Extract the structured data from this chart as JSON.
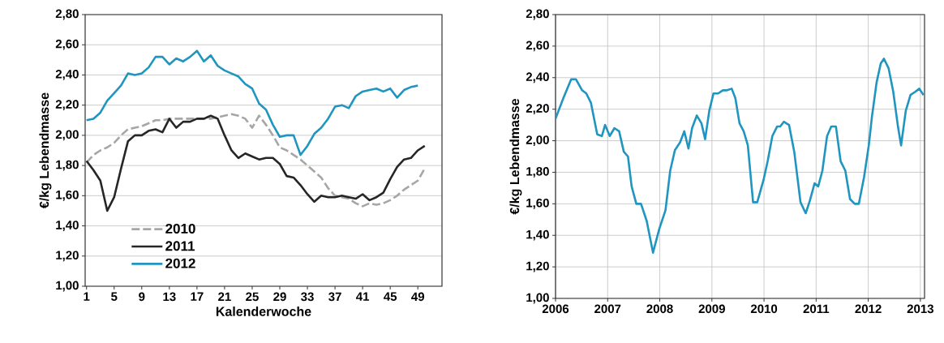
{
  "chart_data": [
    {
      "type": "line",
      "xlabel": "Kalenderwoche",
      "ylabel": "€/kg Lebendmasse",
      "xlim": [
        0.8,
        52.5
      ],
      "xticks": [
        1,
        5,
        9,
        13,
        17,
        21,
        25,
        29,
        33,
        37,
        41,
        45,
        49
      ],
      "ylim": [
        1.0,
        2.8
      ],
      "yticks": [
        {
          "value": 1.0,
          "label": "1,00"
        },
        {
          "value": 1.2,
          "label": "1,20"
        },
        {
          "value": 1.4,
          "label": "1,40"
        },
        {
          "value": 1.6,
          "label": "1,60"
        },
        {
          "value": 1.8,
          "label": "1,80"
        },
        {
          "value": 2.0,
          "label": "2,00"
        },
        {
          "value": 2.2,
          "label": "2,20"
        },
        {
          "value": 2.4,
          "label": "2,40"
        },
        {
          "value": 2.6,
          "label": "2,60"
        },
        {
          "value": 2.8,
          "label": "2,80"
        }
      ],
      "grid": "y",
      "legend": "bottom left",
      "marker": "none",
      "series": [
        {
          "name": "2010",
          "color": "#a6a6a6",
          "line_style": "dashed",
          "x": [
            1,
            2,
            3,
            4,
            5,
            6,
            7,
            8,
            9,
            10,
            11,
            12,
            13,
            14,
            15,
            16,
            17,
            18,
            19,
            20,
            21,
            22,
            23,
            24,
            25,
            26,
            27,
            28,
            29,
            30,
            31,
            32,
            33,
            34,
            35,
            36,
            37,
            38,
            39,
            40,
            41,
            42,
            43,
            44,
            45,
            46,
            47,
            48,
            49,
            50
          ],
          "values": [
            1.82,
            1.87,
            1.9,
            1.92,
            1.95,
            2.0,
            2.04,
            2.05,
            2.06,
            2.08,
            2.1,
            2.1,
            2.11,
            2.11,
            2.11,
            2.11,
            2.11,
            2.11,
            2.11,
            2.12,
            2.13,
            2.14,
            2.13,
            2.11,
            2.05,
            2.13,
            2.07,
            2.0,
            1.92,
            1.9,
            1.87,
            1.84,
            1.8,
            1.76,
            1.72,
            1.65,
            1.6,
            1.59,
            1.58,
            1.55,
            1.53,
            1.55,
            1.54,
            1.55,
            1.57,
            1.6,
            1.64,
            1.67,
            1.7,
            1.78
          ]
        },
        {
          "name": "2011",
          "color": "#262626",
          "line_style": "solid",
          "x": [
            1,
            2,
            3,
            4,
            5,
            6,
            7,
            8,
            9,
            10,
            11,
            12,
            13,
            14,
            15,
            16,
            17,
            18,
            19,
            20,
            21,
            22,
            23,
            24,
            25,
            26,
            27,
            28,
            29,
            30,
            31,
            32,
            33,
            34,
            35,
            36,
            37,
            38,
            39,
            40,
            41,
            42,
            43,
            44,
            45,
            46,
            47,
            48,
            49,
            50
          ],
          "values": [
            1.83,
            1.77,
            1.7,
            1.5,
            1.59,
            1.78,
            1.96,
            2.0,
            2.0,
            2.03,
            2.04,
            2.02,
            2.11,
            2.05,
            2.09,
            2.09,
            2.11,
            2.11,
            2.13,
            2.11,
            2.0,
            1.9,
            1.85,
            1.88,
            1.86,
            1.84,
            1.85,
            1.85,
            1.81,
            1.73,
            1.72,
            1.67,
            1.61,
            1.56,
            1.6,
            1.59,
            1.59,
            1.6,
            1.59,
            1.58,
            1.61,
            1.57,
            1.59,
            1.62,
            1.71,
            1.79,
            1.84,
            1.85,
            1.9,
            1.93
          ]
        },
        {
          "name": "2012",
          "color": "#1f95c0",
          "line_style": "solid",
          "x": [
            1,
            2,
            3,
            4,
            5,
            6,
            7,
            8,
            9,
            10,
            11,
            12,
            13,
            14,
            15,
            16,
            17,
            18,
            19,
            20,
            21,
            22,
            23,
            24,
            25,
            26,
            27,
            28,
            29,
            30,
            31,
            32,
            33,
            34,
            35,
            36,
            37,
            38,
            39,
            40,
            41,
            42,
            43,
            44,
            45,
            46,
            47,
            48,
            49
          ],
          "values": [
            2.1,
            2.11,
            2.15,
            2.23,
            2.28,
            2.33,
            2.41,
            2.4,
            2.41,
            2.45,
            2.52,
            2.52,
            2.47,
            2.51,
            2.49,
            2.52,
            2.56,
            2.49,
            2.53,
            2.46,
            2.43,
            2.41,
            2.39,
            2.34,
            2.31,
            2.21,
            2.17,
            2.07,
            1.99,
            2.0,
            2.0,
            1.87,
            1.93,
            2.01,
            2.05,
            2.11,
            2.19,
            2.2,
            2.18,
            2.26,
            2.29,
            2.3,
            2.31,
            2.29,
            2.31,
            2.25,
            2.3,
            2.32,
            2.33
          ]
        }
      ]
    },
    {
      "type": "line",
      "ylabel": "€/kg Lebendmasse",
      "xlim": [
        2006,
        2013.08
      ],
      "xticks": [
        2006,
        2007,
        2008,
        2009,
        2010,
        2011,
        2012,
        2013
      ],
      "ylim": [
        1.0,
        2.8
      ],
      "yticks": [
        {
          "value": 1.0,
          "label": "1,00"
        },
        {
          "value": 1.2,
          "label": "1,20"
        },
        {
          "value": 1.4,
          "label": "1,40"
        },
        {
          "value": 1.6,
          "label": "1,60"
        },
        {
          "value": 1.8,
          "label": "1,80"
        },
        {
          "value": 2.0,
          "label": "2,00"
        },
        {
          "value": 2.2,
          "label": "2,20"
        },
        {
          "value": 2.4,
          "label": "2,40"
        },
        {
          "value": 2.6,
          "label": "2,60"
        },
        {
          "value": 2.8,
          "label": "2,80"
        }
      ],
      "grid": true,
      "legend": false,
      "marker": "none",
      "series": [
        {
          "color": "#1f95c0",
          "line_style": "solid",
          "x": [
            2006.0,
            2006.15,
            2006.3,
            2006.39,
            2006.51,
            2006.59,
            2006.68,
            2006.8,
            2006.89,
            2006.95,
            2007.04,
            2007.13,
            2007.22,
            2007.31,
            2007.39,
            2007.46,
            2007.55,
            2007.64,
            2007.75,
            2007.87,
            2007.99,
            2008.11,
            2008.2,
            2008.29,
            2008.39,
            2008.47,
            2008.55,
            2008.62,
            2008.71,
            2008.8,
            2008.87,
            2008.95,
            2009.03,
            2009.12,
            2009.21,
            2009.29,
            2009.38,
            2009.45,
            2009.53,
            2009.61,
            2009.69,
            2009.79,
            2009.87,
            2009.99,
            2010.07,
            2010.16,
            2010.25,
            2010.31,
            2010.38,
            2010.48,
            2010.58,
            2010.7,
            2010.8,
            2010.88,
            2010.97,
            2011.04,
            2011.12,
            2011.21,
            2011.29,
            2011.38,
            2011.47,
            2011.56,
            2011.65,
            2011.74,
            2011.82,
            2011.92,
            2012.01,
            2012.07,
            2012.16,
            2012.24,
            2012.3,
            2012.39,
            2012.48,
            2012.57,
            2012.63,
            2012.72,
            2012.81,
            2012.9,
            2012.98,
            2013.06
          ],
          "values": [
            2.14,
            2.27,
            2.39,
            2.39,
            2.32,
            2.3,
            2.24,
            2.04,
            2.03,
            2.1,
            2.03,
            2.08,
            2.06,
            1.93,
            1.9,
            1.71,
            1.6,
            1.6,
            1.49,
            1.29,
            1.44,
            1.56,
            1.81,
            1.94,
            1.99,
            2.06,
            1.95,
            2.08,
            2.16,
            2.11,
            2.01,
            2.19,
            2.3,
            2.3,
            2.32,
            2.32,
            2.33,
            2.27,
            2.11,
            2.06,
            1.97,
            1.61,
            1.61,
            1.75,
            1.87,
            2.03,
            2.09,
            2.09,
            2.12,
            2.1,
            1.93,
            1.61,
            1.54,
            1.62,
            1.73,
            1.71,
            1.81,
            2.03,
            2.09,
            2.09,
            1.87,
            1.81,
            1.63,
            1.6,
            1.6,
            1.77,
            1.97,
            2.15,
            2.37,
            2.49,
            2.52,
            2.46,
            2.31,
            2.09,
            1.97,
            2.19,
            2.29,
            2.31,
            2.33,
            2.29
          ]
        }
      ]
    }
  ]
}
